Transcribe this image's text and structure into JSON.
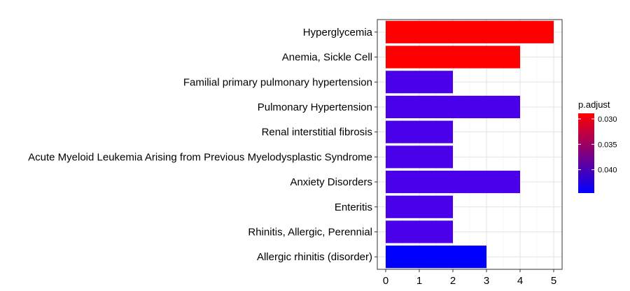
{
  "chart_data": {
    "type": "bar",
    "orientation": "horizontal",
    "categories": [
      "Hyperglycemia",
      "Anemia, Sickle Cell",
      "Familial primary pulmonary hypertension",
      "Pulmonary Hypertension",
      "Renal interstitial fibrosis",
      "Acute Myeloid Leukemia Arising from Previous Myelodysplastic Syndrome",
      "Anxiety Disorders",
      "Enteritis",
      "Rhinitis, Allergic, Perennial",
      "Allergic rhinitis (disorder)"
    ],
    "values": [
      5,
      4,
      2,
      4,
      2,
      2,
      4,
      2,
      2,
      3
    ],
    "p_adjust": [
      0.0289,
      0.0289,
      0.0411,
      0.0411,
      0.0411,
      0.0411,
      0.0411,
      0.0411,
      0.0411,
      0.0446
    ],
    "bar_colors": [
      "#ff0000",
      "#ff0000",
      "#4a00e8",
      "#4a00e8",
      "#4a00e8",
      "#4a00e8",
      "#4a00e8",
      "#4a00e8",
      "#4a00e8",
      "#0000ff"
    ],
    "xlim": [
      0,
      5.25
    ],
    "x_ticks": [
      "0",
      "1",
      "2",
      "3",
      "4",
      "5"
    ],
    "grid": true,
    "legend": {
      "title": "p.adjust",
      "position": "right",
      "type": "colorbar",
      "labels": [
        "0.030",
        "0.035",
        "0.040"
      ],
      "color_low": "#ff0000",
      "color_high": "#0000ff"
    }
  }
}
